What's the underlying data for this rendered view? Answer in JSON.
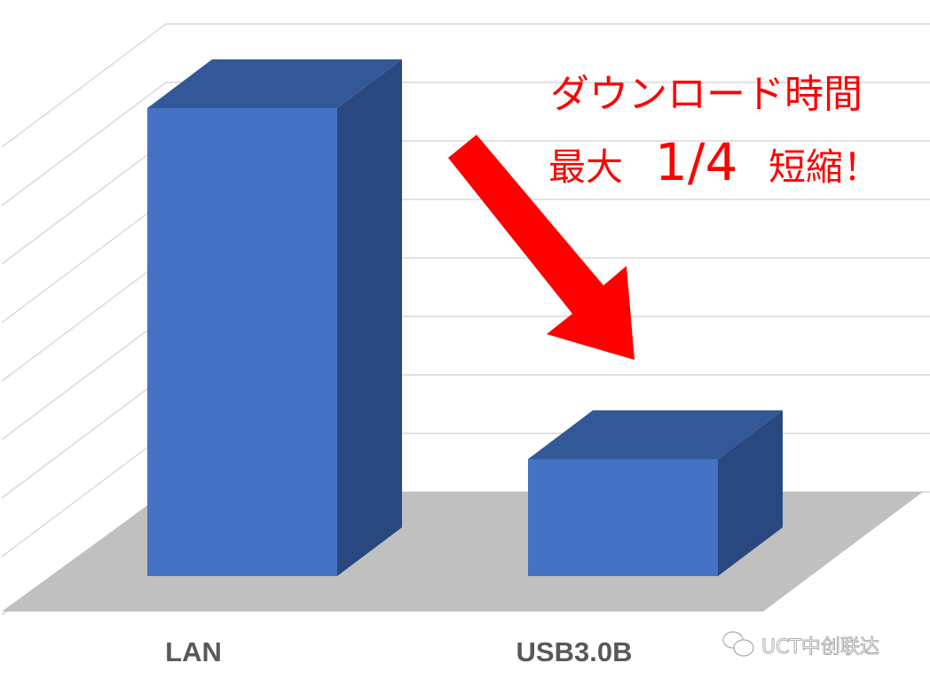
{
  "chart_data": {
    "type": "bar",
    "style": "3d-column",
    "categories": [
      "LAN",
      "USB3.0B"
    ],
    "values": [
      8,
      2
    ],
    "ylim": [
      0,
      8
    ],
    "grid": true,
    "annotation": {
      "line1": "ダウンロード時間",
      "line2_prefix": "最大",
      "line2_ratio": "1/4",
      "line2_suffix": "短縮！"
    },
    "colors": {
      "bar_front": "#4472c4",
      "bar_top": "#335897",
      "bar_side": "#2a4880",
      "floor": "#c0c0c0",
      "grid": "#d9d9d9",
      "arrow": "#ff0000",
      "annotation": "#ff0000",
      "category_text": "#595959"
    }
  },
  "watermark": {
    "text": "UCT中创联达",
    "icon": "wechat-icon"
  }
}
